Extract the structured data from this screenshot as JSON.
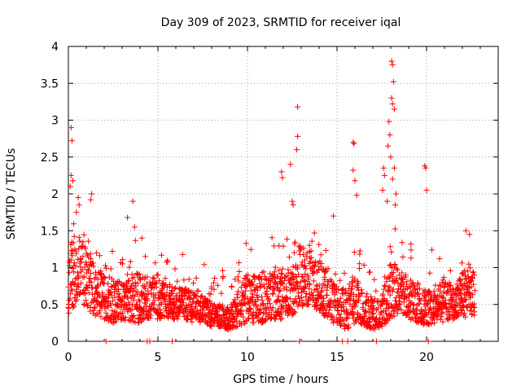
{
  "chart_data": {
    "type": "scatter",
    "title": "Day 309 of 2023, SRMTID for receiver iqal",
    "xlabel": "GPS time / hours",
    "ylabel": "SRMTID / TECUs",
    "xlim": [
      0,
      24
    ],
    "ylim": [
      0,
      4
    ],
    "xticks": [
      0,
      5,
      10,
      15,
      20
    ],
    "xtick_labels": [
      "0",
      "5",
      "10",
      "15",
      "20"
    ],
    "yticks": [
      0,
      0.5,
      1,
      1.5,
      2,
      2.5,
      3,
      3.5,
      4
    ],
    "ytick_labels": [
      "0",
      "0.5",
      "1",
      "1.5",
      "2",
      "2.5",
      "3",
      "3.5",
      "4"
    ],
    "grid": true,
    "marker": "+",
    "color": "#ff0000",
    "generated": {
      "x_start": 0.0,
      "x_end": 22.7,
      "step_hours": 0.015,
      "note": "dense background scatter reconstructed from the visual envelope",
      "envelope": [
        [
          0.0,
          0.35,
          1.25
        ],
        [
          0.5,
          0.55,
          1.55
        ],
        [
          1.0,
          0.45,
          1.3
        ],
        [
          1.5,
          0.35,
          1.05
        ],
        [
          2.0,
          0.3,
          0.9
        ],
        [
          2.5,
          0.25,
          0.85
        ],
        [
          3.0,
          0.3,
          0.8
        ],
        [
          3.5,
          0.25,
          0.9
        ],
        [
          4.0,
          0.25,
          0.95
        ],
        [
          4.5,
          0.3,
          0.9
        ],
        [
          5.0,
          0.3,
          0.85
        ],
        [
          5.5,
          0.3,
          0.8
        ],
        [
          6.0,
          0.3,
          0.75
        ],
        [
          6.5,
          0.3,
          0.75
        ],
        [
          7.0,
          0.25,
          0.65
        ],
        [
          7.5,
          0.25,
          0.6
        ],
        [
          8.0,
          0.2,
          0.55
        ],
        [
          8.5,
          0.2,
          0.5
        ],
        [
          9.0,
          0.15,
          0.45
        ],
        [
          9.5,
          0.2,
          0.7
        ],
        [
          10.0,
          0.25,
          0.95
        ],
        [
          10.5,
          0.25,
          0.9
        ],
        [
          11.0,
          0.25,
          0.85
        ],
        [
          11.5,
          0.3,
          0.95
        ],
        [
          12.0,
          0.3,
          1.0
        ],
        [
          12.5,
          0.35,
          1.2
        ],
        [
          13.0,
          0.45,
          1.35
        ],
        [
          13.5,
          0.5,
          1.3
        ],
        [
          14.0,
          0.4,
          1.1
        ],
        [
          14.5,
          0.3,
          0.95
        ],
        [
          15.0,
          0.2,
          0.75
        ],
        [
          15.5,
          0.15,
          0.7
        ],
        [
          16.0,
          0.25,
          0.95
        ],
        [
          16.5,
          0.2,
          0.65
        ],
        [
          17.0,
          0.15,
          0.55
        ],
        [
          17.5,
          0.2,
          0.6
        ],
        [
          18.0,
          0.3,
          1.1
        ],
        [
          18.5,
          0.4,
          1.0
        ],
        [
          19.0,
          0.3,
          0.9
        ],
        [
          19.5,
          0.25,
          0.8
        ],
        [
          20.0,
          0.2,
          0.7
        ],
        [
          20.5,
          0.25,
          0.75
        ],
        [
          21.0,
          0.25,
          0.8
        ],
        [
          21.5,
          0.3,
          0.75
        ],
        [
          22.0,
          0.3,
          0.95
        ],
        [
          22.7,
          0.35,
          1.05
        ]
      ]
    },
    "notable_points": [
      {
        "x": 0.15,
        "y": 2.9
      },
      {
        "x": 0.2,
        "y": 2.72
      },
      {
        "x": 0.15,
        "y": 2.25
      },
      {
        "x": 0.25,
        "y": 2.18
      },
      {
        "x": 0.1,
        "y": 2.1
      },
      {
        "x": 0.55,
        "y": 1.95
      },
      {
        "x": 0.6,
        "y": 1.85
      },
      {
        "x": 0.45,
        "y": 1.75
      },
      {
        "x": 1.3,
        "y": 2.0
      },
      {
        "x": 1.25,
        "y": 1.92
      },
      {
        "x": 3.6,
        "y": 1.9
      },
      {
        "x": 3.3,
        "y": 1.68
      },
      {
        "x": 3.7,
        "y": 1.55
      },
      {
        "x": 4.1,
        "y": 1.4
      },
      {
        "x": 11.9,
        "y": 2.3
      },
      {
        "x": 11.95,
        "y": 2.22
      },
      {
        "x": 12.4,
        "y": 2.4
      },
      {
        "x": 12.5,
        "y": 1.9
      },
      {
        "x": 12.55,
        "y": 1.85
      },
      {
        "x": 12.8,
        "y": 3.18
      },
      {
        "x": 12.8,
        "y": 2.78
      },
      {
        "x": 12.75,
        "y": 2.6
      },
      {
        "x": 14.8,
        "y": 1.7
      },
      {
        "x": 15.9,
        "y": 2.7
      },
      {
        "x": 15.95,
        "y": 2.68
      },
      {
        "x": 15.9,
        "y": 2.32
      },
      {
        "x": 16.0,
        "y": 2.18
      },
      {
        "x": 16.1,
        "y": 1.98
      },
      {
        "x": 17.6,
        "y": 2.35
      },
      {
        "x": 17.65,
        "y": 2.25
      },
      {
        "x": 17.55,
        "y": 2.05
      },
      {
        "x": 17.8,
        "y": 1.9
      },
      {
        "x": 18.05,
        "y": 3.8
      },
      {
        "x": 18.1,
        "y": 3.75
      },
      {
        "x": 18.15,
        "y": 3.52
      },
      {
        "x": 18.05,
        "y": 3.3
      },
      {
        "x": 18.1,
        "y": 3.22
      },
      {
        "x": 18.2,
        "y": 3.15
      },
      {
        "x": 17.9,
        "y": 2.98
      },
      {
        "x": 17.95,
        "y": 2.8
      },
      {
        "x": 17.85,
        "y": 2.65
      },
      {
        "x": 18.0,
        "y": 2.5
      },
      {
        "x": 18.2,
        "y": 2.35
      },
      {
        "x": 18.1,
        "y": 2.2
      },
      {
        "x": 18.3,
        "y": 2.0
      },
      {
        "x": 18.25,
        "y": 1.85
      },
      {
        "x": 19.9,
        "y": 2.38
      },
      {
        "x": 19.95,
        "y": 2.35
      },
      {
        "x": 20.0,
        "y": 2.05
      },
      {
        "x": 22.2,
        "y": 1.5
      },
      {
        "x": 22.4,
        "y": 1.45
      },
      {
        "x": 2.1,
        "y": 0.0
      },
      {
        "x": 4.4,
        "y": 0.0
      },
      {
        "x": 4.55,
        "y": 0.0
      },
      {
        "x": 5.8,
        "y": 0.0
      },
      {
        "x": 12.9,
        "y": 0.0
      },
      {
        "x": 15.3,
        "y": 0.0
      },
      {
        "x": 15.6,
        "y": 0.0
      },
      {
        "x": 17.2,
        "y": 0.0
      },
      {
        "x": 20.1,
        "y": 0.0
      }
    ]
  }
}
